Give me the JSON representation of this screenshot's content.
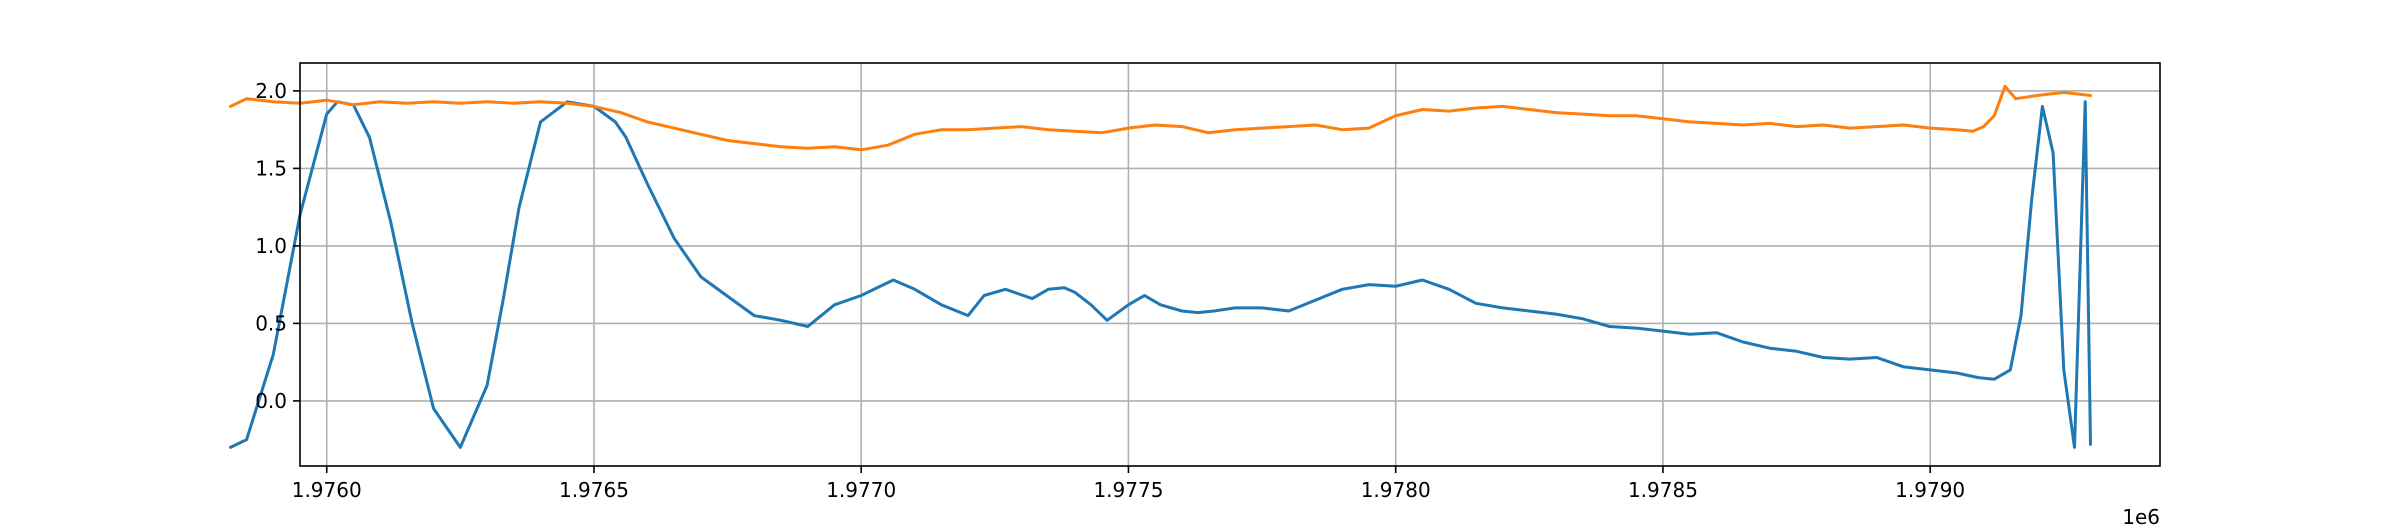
{
  "chart_data": {
    "type": "line",
    "title": "",
    "xlabel": "",
    "ylabel": "",
    "x_offset_label": "1e6",
    "xlim": [
      1975950,
      1979430
    ],
    "ylim": [
      -0.42,
      2.18
    ],
    "grid": true,
    "legend": "none",
    "x_ticks": [
      {
        "value": 1976000,
        "label": "1.9760"
      },
      {
        "value": 1976500,
        "label": "1.9765"
      },
      {
        "value": 1977000,
        "label": "1.9770"
      },
      {
        "value": 1977500,
        "label": "1.9775"
      },
      {
        "value": 1978000,
        "label": "1.9780"
      },
      {
        "value": 1978500,
        "label": "1.9785"
      },
      {
        "value": 1979000,
        "label": "1.9790"
      }
    ],
    "y_ticks": [
      {
        "value": 0.0,
        "label": "0.0"
      },
      {
        "value": 0.5,
        "label": "0.5"
      },
      {
        "value": 1.0,
        "label": "1.0"
      },
      {
        "value": 1.5,
        "label": "1.5"
      },
      {
        "value": 2.0,
        "label": "2.0"
      }
    ],
    "series": [
      {
        "color": "#1f77b4",
        "x": [
          1975820,
          1975850,
          1975900,
          1975950,
          1976000,
          1976020,
          1976050,
          1976080,
          1976120,
          1976160,
          1976200,
          1976250,
          1976300,
          1976330,
          1976360,
          1976400,
          1976450,
          1976500,
          1976540,
          1976560,
          1976580,
          1976600,
          1976650,
          1976700,
          1976760,
          1976800,
          1976850,
          1976900,
          1976950,
          1977000,
          1977060,
          1977100,
          1977150,
          1977200,
          1977230,
          1977270,
          1977320,
          1977350,
          1977380,
          1977400,
          1977430,
          1977460,
          1977500,
          1977530,
          1977560,
          1977600,
          1977630,
          1977660,
          1977700,
          1977750,
          1977800,
          1977850,
          1977900,
          1977950,
          1978000,
          1978050,
          1978100,
          1978150,
          1978200,
          1978250,
          1978300,
          1978350,
          1978400,
          1978450,
          1978500,
          1978550,
          1978600,
          1978650,
          1978700,
          1978750,
          1978800,
          1978850,
          1978900,
          1978950,
          1979000,
          1979050,
          1979090,
          1979120,
          1979150,
          1979170,
          1979190,
          1979210,
          1979230,
          1979250,
          1979270,
          1979290,
          1979300
        ],
        "y": [
          -0.3,
          -0.25,
          0.3,
          1.2,
          1.85,
          1.93,
          1.91,
          1.7,
          1.15,
          0.5,
          -0.05,
          -0.3,
          0.1,
          0.65,
          1.25,
          1.8,
          1.93,
          1.9,
          1.8,
          1.7,
          1.55,
          1.4,
          1.05,
          0.8,
          0.65,
          0.55,
          0.52,
          0.48,
          0.62,
          0.68,
          0.78,
          0.72,
          0.62,
          0.55,
          0.68,
          0.72,
          0.66,
          0.72,
          0.73,
          0.7,
          0.62,
          0.52,
          0.62,
          0.68,
          0.62,
          0.58,
          0.57,
          0.58,
          0.6,
          0.6,
          0.58,
          0.65,
          0.72,
          0.75,
          0.74,
          0.78,
          0.72,
          0.63,
          0.6,
          0.58,
          0.56,
          0.53,
          0.48,
          0.47,
          0.45,
          0.43,
          0.44,
          0.38,
          0.34,
          0.32,
          0.28,
          0.27,
          0.28,
          0.22,
          0.2,
          0.18,
          0.15,
          0.14,
          0.2,
          0.55,
          1.3,
          1.9,
          1.6,
          0.2,
          -0.3,
          1.93,
          -0.28
        ]
      },
      {
        "color": "#ff7f0e",
        "x": [
          1975820,
          1975850,
          1975900,
          1975950,
          1976000,
          1976050,
          1976100,
          1976150,
          1976200,
          1976250,
          1976300,
          1976350,
          1976400,
          1976450,
          1976500,
          1976550,
          1976600,
          1976650,
          1976700,
          1976750,
          1976800,
          1976850,
          1976900,
          1976950,
          1977000,
          1977050,
          1977100,
          1977150,
          1977200,
          1977250,
          1977300,
          1977350,
          1977400,
          1977450,
          1977500,
          1977550,
          1977600,
          1977650,
          1977700,
          1977750,
          1977800,
          1977850,
          1977900,
          1977950,
          1978000,
          1978050,
          1978100,
          1978150,
          1978200,
          1978250,
          1978300,
          1978350,
          1978400,
          1978450,
          1978500,
          1978550,
          1978600,
          1978650,
          1978700,
          1978750,
          1978800,
          1978850,
          1978900,
          1978950,
          1979000,
          1979050,
          1979080,
          1979100,
          1979120,
          1979140,
          1979160,
          1979200,
          1979250,
          1979300
        ],
        "y": [
          1.9,
          1.95,
          1.93,
          1.92,
          1.94,
          1.91,
          1.93,
          1.92,
          1.93,
          1.92,
          1.93,
          1.92,
          1.93,
          1.92,
          1.9,
          1.86,
          1.8,
          1.76,
          1.72,
          1.68,
          1.66,
          1.64,
          1.63,
          1.64,
          1.62,
          1.65,
          1.72,
          1.75,
          1.75,
          1.76,
          1.77,
          1.75,
          1.74,
          1.73,
          1.76,
          1.78,
          1.77,
          1.73,
          1.75,
          1.76,
          1.77,
          1.78,
          1.75,
          1.76,
          1.84,
          1.88,
          1.87,
          1.89,
          1.9,
          1.88,
          1.86,
          1.85,
          1.84,
          1.84,
          1.82,
          1.8,
          1.79,
          1.78,
          1.79,
          1.77,
          1.78,
          1.76,
          1.77,
          1.78,
          1.76,
          1.75,
          1.74,
          1.77,
          1.84,
          2.03,
          1.95,
          1.97,
          1.99,
          1.97
        ]
      }
    ]
  }
}
